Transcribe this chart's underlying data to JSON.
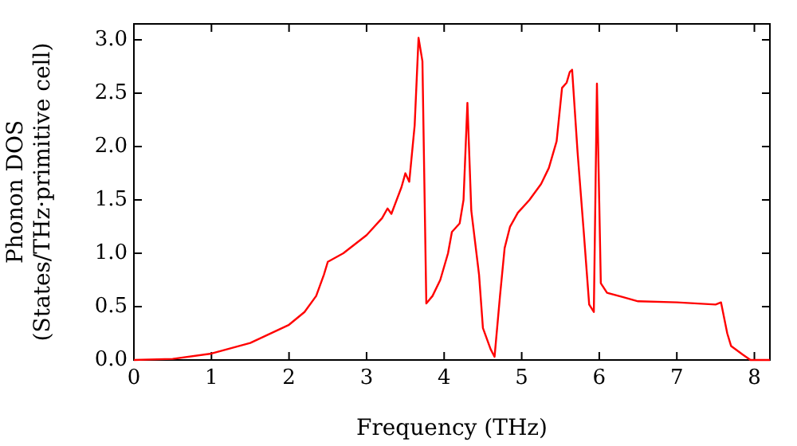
{
  "chart_data": {
    "type": "line",
    "xlabel": "Frequency (THz)",
    "ylabel": "Phonon DOS\n(States/THz·primitive cell)",
    "x": [
      0,
      0.5,
      1,
      1.5,
      2,
      2.2,
      2.35,
      2.45,
      2.5,
      2.7,
      3.0,
      3.2,
      3.27,
      3.32,
      3.45,
      3.5,
      3.55,
      3.62,
      3.67,
      3.72,
      3.77,
      3.85,
      3.95,
      4.05,
      4.1,
      4.2,
      4.25,
      4.3,
      4.35,
      4.45,
      4.5,
      4.6,
      4.65,
      4.72,
      4.78,
      4.85,
      4.95,
      5.1,
      5.25,
      5.35,
      5.45,
      5.52,
      5.58,
      5.62,
      5.65,
      5.72,
      5.8,
      5.87,
      5.93,
      5.97,
      6.02,
      6.1,
      6.3,
      6.5,
      7.0,
      7.5,
      7.57,
      7.65,
      7.7,
      7.85,
      7.95,
      8.2
    ],
    "series": [
      {
        "color": "#ff0000",
        "values": [
          0,
          0.01,
          0.06,
          0.16,
          0.33,
          0.45,
          0.6,
          0.8,
          0.92,
          1.0,
          1.17,
          1.33,
          1.42,
          1.37,
          1.62,
          1.75,
          1.67,
          2.2,
          3.02,
          2.8,
          0.53,
          0.6,
          0.75,
          1.0,
          1.2,
          1.28,
          1.5,
          2.41,
          1.4,
          0.8,
          0.3,
          0.1,
          0.03,
          0.6,
          1.05,
          1.25,
          1.38,
          1.5,
          1.65,
          1.8,
          2.05,
          2.55,
          2.6,
          2.7,
          2.72,
          1.95,
          1.2,
          0.52,
          0.45,
          2.59,
          0.72,
          0.63,
          0.59,
          0.55,
          0.54,
          0.52,
          0.54,
          0.25,
          0.13,
          0.05,
          0,
          0
        ]
      }
    ],
    "xlim": [
      0,
      8.2
    ],
    "xticks": [
      0,
      1,
      2,
      3,
      4,
      5,
      6,
      7,
      8
    ],
    "ylim": [
      0,
      3.15
    ],
    "yticks": [
      {
        "value": 0,
        "label": "0.0"
      },
      {
        "value": 0.5,
        "label": "0.5"
      },
      {
        "value": 1,
        "label": "1.0"
      },
      {
        "value": 1.5,
        "label": "1.5"
      },
      {
        "value": 2,
        "label": "2.0"
      },
      {
        "value": 2.5,
        "label": "2.5"
      },
      {
        "value": 3,
        "label": "3.0"
      }
    ],
    "grid": false,
    "legend": false,
    "marker": "none",
    "line_style": "solid"
  }
}
